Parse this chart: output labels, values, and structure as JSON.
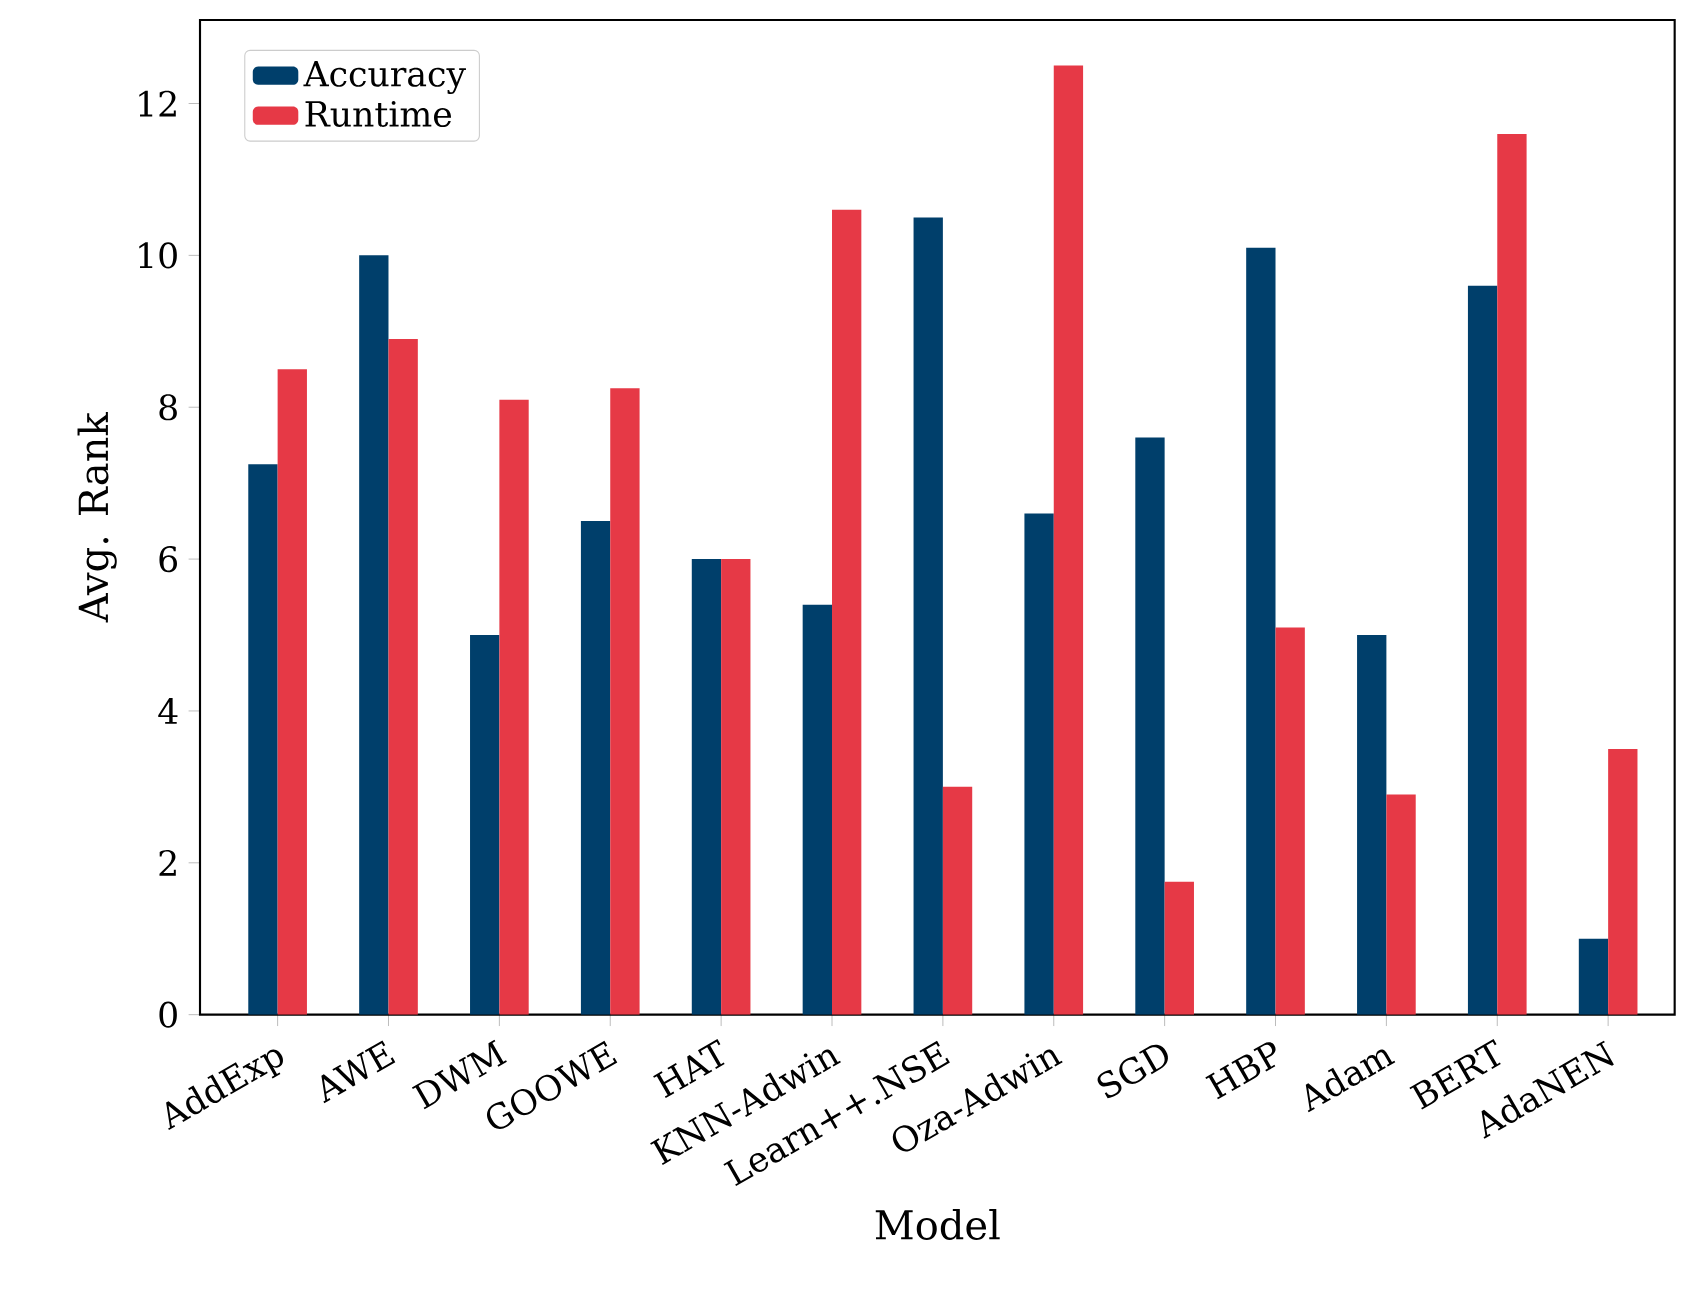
{
  "chart_data": {
    "type": "bar",
    "xlabel": "Model",
    "ylabel": "Avg. Rank",
    "categories": [
      "AddExp",
      "AWE",
      "DWM",
      "GOOWE",
      "HAT",
      "KNN-Adwin",
      "Learn++.NSE",
      "Oza-Adwin",
      "SGD",
      "HBP",
      "Adam",
      "BERT",
      "AdaNEN"
    ],
    "series": [
      {
        "name": "Accuracy",
        "color": "#003f6b",
        "values": [
          7.25,
          10,
          5,
          6.5,
          6,
          5.4,
          10.5,
          6.6,
          7.6,
          10.1,
          5,
          9.6,
          1
        ]
      },
      {
        "name": "Runtime",
        "color": "#e63946",
        "values": [
          8.5,
          8.9,
          8.1,
          8.25,
          6,
          10.6,
          3,
          12.5,
          1.75,
          5.1,
          2.9,
          11.6,
          3.5
        ]
      }
    ],
    "ylim": [
      0,
      13.1
    ],
    "yticks": [
      0,
      2,
      4,
      6,
      8,
      10,
      12
    ],
    "legend": "top left",
    "grid": false
  }
}
